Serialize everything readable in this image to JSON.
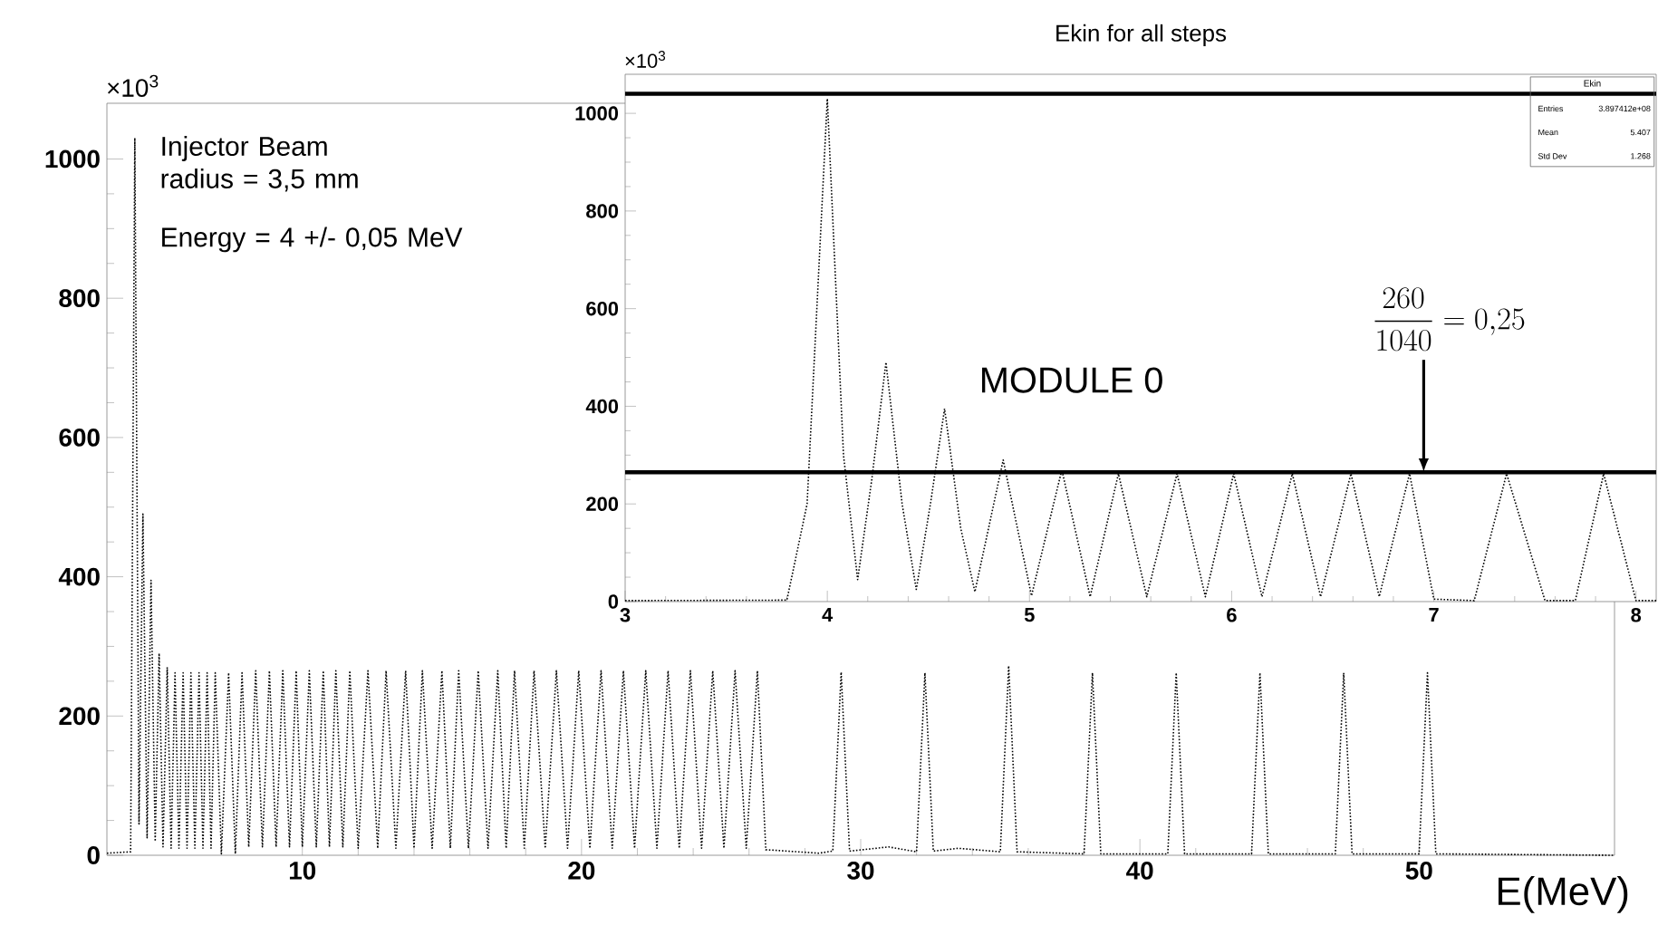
{
  "chart_data": [
    {
      "type": "line",
      "xlabel": "E(MeV)",
      "ylabel": "×10$^{3}$",
      "xlim": [
        3,
        57
      ],
      "ylim": [
        0,
        1080
      ],
      "xticks": [
        10,
        20,
        30,
        40,
        50
      ],
      "yticks": [
        0,
        200,
        400,
        600,
        800,
        1000
      ],
      "line_style": "dotted",
      "annotations": [
        "Injector Beam radius = 3,5 mm",
        "Energy = 4 +/- 0,05 MeV"
      ],
      "series": [
        {
          "color": "#000000",
          "x": [
            3,
            3.85,
            4.0,
            4.15,
            4.29,
            4.44,
            4.58,
            4.73,
            4.87,
            5.01,
            5.16,
            5.3,
            5.44,
            5.58,
            5.73,
            5.87,
            6.01,
            6.15,
            6.3,
            6.44,
            6.59,
            6.73,
            6.88,
            7.1,
            7.36,
            7.6,
            7.84,
            8.08,
            8.33,
            8.57,
            8.82,
            9.06,
            9.3,
            9.54,
            9.78,
            10.0,
            10.25,
            10.5,
            10.75,
            10.97,
            11.2,
            11.45,
            11.7,
            12.0,
            12.35,
            12.7,
            13.0,
            13.35,
            13.7,
            14.0,
            14.3,
            14.65,
            15.0,
            15.3,
            15.6,
            15.95,
            16.3,
            16.65,
            17.0,
            17.3,
            17.6,
            17.95,
            18.3,
            18.7,
            19.1,
            19.5,
            19.9,
            20.3,
            20.7,
            21.1,
            21.5,
            21.9,
            22.3,
            22.7,
            23.1,
            23.5,
            23.9,
            24.3,
            24.7,
            25.1,
            25.5,
            25.9,
            26.3,
            26.6,
            28.5,
            29.0,
            29.3,
            29.6,
            31.0,
            32.0,
            32.3,
            32.6,
            33.5,
            35.0,
            35.3,
            35.6,
            38.0,
            38.3,
            38.6,
            41.0,
            41.3,
            41.6,
            44.0,
            44.3,
            44.6,
            47.0,
            47.3,
            47.6,
            50.0,
            50.3,
            50.6,
            57
          ],
          "values": [
            3,
            5,
            1030,
            45,
            490,
            25,
            395,
            20,
            290,
            12,
            270,
            10,
            262,
            10,
            262,
            10,
            262,
            10,
            262,
            10,
            262,
            10,
            262,
            2,
            262,
            2,
            262,
            12,
            265,
            12,
            265,
            12,
            265,
            12,
            265,
            12,
            265,
            12,
            265,
            12,
            265,
            12,
            265,
            10,
            265,
            10,
            265,
            10,
            265,
            10,
            265,
            10,
            265,
            10,
            265,
            10,
            265,
            10,
            265,
            10,
            265,
            10,
            265,
            10,
            265,
            10,
            265,
            10,
            265,
            10,
            265,
            10,
            265,
            10,
            265,
            10,
            265,
            10,
            265,
            10,
            265,
            10,
            265,
            8,
            3,
            6,
            263,
            6,
            12,
            5,
            262,
            6,
            10,
            5,
            272,
            5,
            2,
            262,
            2,
            2,
            262,
            2,
            2,
            262,
            2,
            2,
            262,
            2,
            2,
            262,
            2,
            0
          ]
        }
      ]
    },
    {
      "type": "line",
      "title": "Ekin for all steps",
      "ylabel": "×10$^{3}$",
      "xlim": [
        3,
        8.1
      ],
      "ylim": [
        0,
        1080
      ],
      "xticks": [
        3,
        4,
        5,
        6,
        7,
        8
      ],
      "yticks": [
        0,
        200,
        400,
        600,
        800,
        1000
      ],
      "line_style": "dotted",
      "annotations": [
        "MODULE 0",
        {
          "text": "\\frac{260}{1040} = 0{,}25",
          "x": 6.95,
          "y": 265
        },
        "Ekin",
        "Entries",
        "3.897412e+08",
        "Mean",
        "5.407",
        "Std Dev",
        "1.268"
      ],
      "ref_lines": [
        {
          "axis": "y",
          "value": 1040,
          "color": "#000000"
        },
        {
          "axis": "y",
          "value": 265,
          "color": "#000000"
        }
      ],
      "series": [
        {
          "color": "#000000",
          "x": [
            3,
            3.8,
            3.9,
            4.0,
            4.08,
            4.15,
            4.22,
            4.29,
            4.37,
            4.44,
            4.51,
            4.58,
            4.66,
            4.73,
            4.87,
            5.01,
            5.16,
            5.3,
            5.44,
            5.58,
            5.73,
            5.87,
            6.01,
            6.15,
            6.3,
            6.44,
            6.59,
            6.73,
            6.88,
            7.0,
            7.2,
            7.36,
            7.55,
            7.7,
            7.84,
            8.0,
            8.1
          ],
          "values": [
            2,
            3,
            200,
            1030,
            300,
            45,
            250,
            490,
            200,
            25,
            200,
            395,
            150,
            20,
            290,
            12,
            270,
            10,
            262,
            10,
            262,
            10,
            262,
            10,
            262,
            10,
            262,
            10,
            262,
            5,
            2,
            262,
            2,
            2,
            262,
            2,
            2
          ]
        }
      ]
    }
  ]
}
